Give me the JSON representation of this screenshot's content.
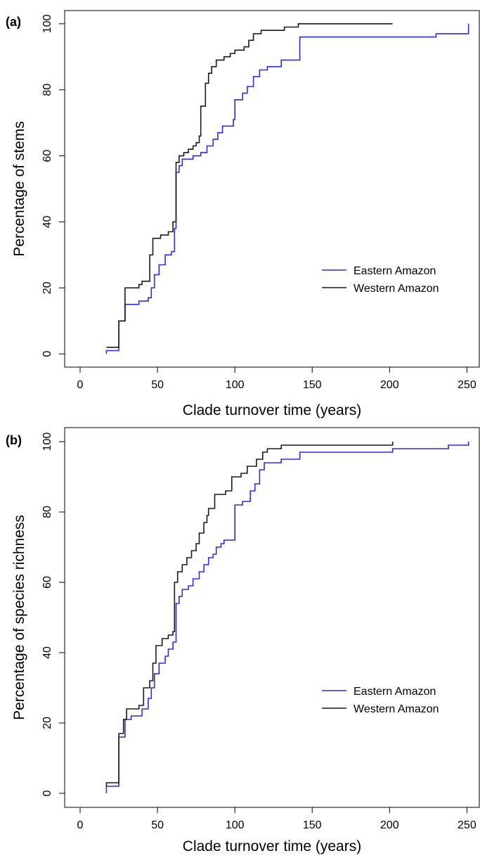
{
  "chart_data": [
    {
      "type": "line",
      "panel_label": "(a)",
      "xlabel": "Clade turnover time (years)",
      "ylabel": "Percentage of stems",
      "xlim": [
        -10,
        258
      ],
      "ylim": [
        -4,
        104
      ],
      "xticks": [
        0,
        50,
        100,
        150,
        200,
        250
      ],
      "yticks": [
        0,
        20,
        40,
        60,
        80,
        100
      ],
      "grid": false,
      "legend_position": "lower-right",
      "step": true,
      "series": [
        {
          "name": "Eastern Amazon",
          "color": "#2b2bf0",
          "points": [
            [
              17,
              0
            ],
            [
              17,
              1
            ],
            [
              25,
              1
            ],
            [
              25,
              10
            ],
            [
              29,
              10
            ],
            [
              29,
              15
            ],
            [
              38,
              15
            ],
            [
              38,
              16
            ],
            [
              44,
              16
            ],
            [
              44,
              17
            ],
            [
              46,
              17
            ],
            [
              46,
              20
            ],
            [
              48,
              20
            ],
            [
              48,
              24
            ],
            [
              51,
              24
            ],
            [
              51,
              27
            ],
            [
              55,
              27
            ],
            [
              55,
              30
            ],
            [
              59,
              30
            ],
            [
              59,
              31
            ],
            [
              61,
              31
            ],
            [
              61,
              38
            ],
            [
              62,
              38
            ],
            [
              62,
              55
            ],
            [
              64,
              55
            ],
            [
              64,
              57
            ],
            [
              66,
              57
            ],
            [
              66,
              59
            ],
            [
              73,
              59
            ],
            [
              73,
              60
            ],
            [
              78,
              60
            ],
            [
              78,
              61
            ],
            [
              82,
              61
            ],
            [
              82,
              63
            ],
            [
              86,
              63
            ],
            [
              86,
              65
            ],
            [
              89,
              65
            ],
            [
              89,
              67
            ],
            [
              92,
              67
            ],
            [
              92,
              69
            ],
            [
              99,
              69
            ],
            [
              99,
              71
            ],
            [
              100,
              71
            ],
            [
              100,
              77
            ],
            [
              105,
              77
            ],
            [
              105,
              79
            ],
            [
              108,
              79
            ],
            [
              108,
              81
            ],
            [
              112,
              81
            ],
            [
              112,
              84
            ],
            [
              116,
              84
            ],
            [
              116,
              86
            ],
            [
              121,
              86
            ],
            [
              121,
              87
            ],
            [
              130,
              87
            ],
            [
              130,
              89
            ],
            [
              142,
              89
            ],
            [
              142,
              96
            ],
            [
              230,
              96
            ],
            [
              230,
              97
            ],
            [
              251,
              97
            ],
            [
              251,
              100
            ]
          ]
        },
        {
          "name": "Western Amazon",
          "color": "#1a1a1a",
          "points": [
            [
              17,
              2
            ],
            [
              25,
              2
            ],
            [
              25,
              10
            ],
            [
              29,
              10
            ],
            [
              29,
              20
            ],
            [
              38,
              20
            ],
            [
              38,
              21
            ],
            [
              40,
              21
            ],
            [
              40,
              22
            ],
            [
              45,
              22
            ],
            [
              45,
              30
            ],
            [
              47,
              30
            ],
            [
              47,
              35
            ],
            [
              52,
              35
            ],
            [
              52,
              36
            ],
            [
              57,
              36
            ],
            [
              57,
              37
            ],
            [
              60,
              37
            ],
            [
              60,
              40
            ],
            [
              62,
              40
            ],
            [
              62,
              58
            ],
            [
              64,
              58
            ],
            [
              64,
              60
            ],
            [
              67,
              60
            ],
            [
              67,
              61
            ],
            [
              70,
              61
            ],
            [
              70,
              62
            ],
            [
              73,
              62
            ],
            [
              73,
              63
            ],
            [
              75,
              63
            ],
            [
              75,
              64
            ],
            [
              77,
              64
            ],
            [
              77,
              66
            ],
            [
              78,
              66
            ],
            [
              78,
              75
            ],
            [
              81,
              75
            ],
            [
              81,
              82
            ],
            [
              83,
              82
            ],
            [
              83,
              85
            ],
            [
              85,
              85
            ],
            [
              85,
              87
            ],
            [
              88,
              87
            ],
            [
              88,
              89
            ],
            [
              93,
              89
            ],
            [
              93,
              90
            ],
            [
              97,
              90
            ],
            [
              97,
              91
            ],
            [
              100,
              91
            ],
            [
              100,
              92
            ],
            [
              106,
              92
            ],
            [
              106,
              93
            ],
            [
              109,
              93
            ],
            [
              109,
              95
            ],
            [
              112,
              95
            ],
            [
              112,
              97
            ],
            [
              117,
              97
            ],
            [
              117,
              98
            ],
            [
              132,
              98
            ],
            [
              132,
              99
            ],
            [
              141,
              99
            ],
            [
              141,
              100
            ],
            [
              202,
              100
            ]
          ]
        }
      ]
    },
    {
      "type": "line",
      "panel_label": "(b)",
      "xlabel": "Clade turnover time (years)",
      "ylabel": "Percentage of species richness",
      "xlim": [
        -10,
        258
      ],
      "ylim": [
        -4,
        104
      ],
      "xticks": [
        0,
        50,
        100,
        150,
        200,
        250
      ],
      "yticks": [
        0,
        20,
        40,
        60,
        80,
        100
      ],
      "grid": false,
      "legend_position": "lower-right",
      "step": true,
      "series": [
        {
          "name": "Eastern Amazon",
          "color": "#2b2bf0",
          "points": [
            [
              17,
              0
            ],
            [
              17,
              2
            ],
            [
              25,
              2
            ],
            [
              25,
              16
            ],
            [
              29,
              16
            ],
            [
              29,
              21
            ],
            [
              33,
              21
            ],
            [
              33,
              22
            ],
            [
              40,
              22
            ],
            [
              40,
              24
            ],
            [
              44,
              24
            ],
            [
              44,
              27
            ],
            [
              46,
              27
            ],
            [
              46,
              30
            ],
            [
              48,
              30
            ],
            [
              48,
              34
            ],
            [
              51,
              34
            ],
            [
              51,
              37
            ],
            [
              55,
              37
            ],
            [
              55,
              39
            ],
            [
              57,
              39
            ],
            [
              57,
              41
            ],
            [
              60,
              41
            ],
            [
              60,
              43
            ],
            [
              62,
              43
            ],
            [
              62,
              54
            ],
            [
              64,
              54
            ],
            [
              64,
              56
            ],
            [
              66,
              56
            ],
            [
              66,
              58
            ],
            [
              70,
              58
            ],
            [
              70,
              59
            ],
            [
              73,
              59
            ],
            [
              73,
              61
            ],
            [
              77,
              61
            ],
            [
              77,
              63
            ],
            [
              80,
              63
            ],
            [
              80,
              65
            ],
            [
              83,
              65
            ],
            [
              83,
              67
            ],
            [
              86,
              67
            ],
            [
              86,
              68
            ],
            [
              88,
              68
            ],
            [
              88,
              70
            ],
            [
              91,
              70
            ],
            [
              91,
              71
            ],
            [
              93,
              71
            ],
            [
              93,
              72
            ],
            [
              100,
              72
            ],
            [
              100,
              82
            ],
            [
              105,
              82
            ],
            [
              105,
              83
            ],
            [
              110,
              83
            ],
            [
              110,
              86
            ],
            [
              113,
              86
            ],
            [
              113,
              88
            ],
            [
              116,
              88
            ],
            [
              116,
              92
            ],
            [
              119,
              92
            ],
            [
              119,
              94
            ],
            [
              130,
              94
            ],
            [
              130,
              95
            ],
            [
              142,
              95
            ],
            [
              142,
              97
            ],
            [
              202,
              97
            ],
            [
              202,
              98
            ],
            [
              238,
              98
            ],
            [
              238,
              99
            ],
            [
              251,
              99
            ],
            [
              251,
              100
            ]
          ]
        },
        {
          "name": "Western Amazon",
          "color": "#1a1a1a",
          "points": [
            [
              17,
              2
            ],
            [
              17,
              3
            ],
            [
              25,
              3
            ],
            [
              25,
              17
            ],
            [
              28,
              17
            ],
            [
              28,
              21
            ],
            [
              30,
              21
            ],
            [
              30,
              24
            ],
            [
              38,
              24
            ],
            [
              38,
              25
            ],
            [
              41,
              25
            ],
            [
              41,
              30
            ],
            [
              45,
              30
            ],
            [
              45,
              32
            ],
            [
              47,
              32
            ],
            [
              47,
              37
            ],
            [
              49,
              37
            ],
            [
              49,
              42
            ],
            [
              53,
              42
            ],
            [
              53,
              44
            ],
            [
              57,
              44
            ],
            [
              57,
              45
            ],
            [
              60,
              45
            ],
            [
              60,
              46
            ],
            [
              61,
              46
            ],
            [
              61,
              60
            ],
            [
              63,
              60
            ],
            [
              63,
              63
            ],
            [
              66,
              63
            ],
            [
              66,
              65
            ],
            [
              69,
              65
            ],
            [
              69,
              67
            ],
            [
              72,
              67
            ],
            [
              72,
              69
            ],
            [
              75,
              69
            ],
            [
              75,
              71
            ],
            [
              77,
              71
            ],
            [
              77,
              74
            ],
            [
              80,
              74
            ],
            [
              80,
              77
            ],
            [
              82,
              77
            ],
            [
              82,
              79
            ],
            [
              83,
              79
            ],
            [
              83,
              81
            ],
            [
              87,
              81
            ],
            [
              87,
              85
            ],
            [
              94,
              85
            ],
            [
              94,
              86
            ],
            [
              98,
              86
            ],
            [
              98,
              90
            ],
            [
              104,
              90
            ],
            [
              104,
              91
            ],
            [
              108,
              91
            ],
            [
              108,
              93
            ],
            [
              114,
              93
            ],
            [
              114,
              95
            ],
            [
              118,
              95
            ],
            [
              118,
              97
            ],
            [
              121,
              97
            ],
            [
              121,
              98
            ],
            [
              130,
              98
            ],
            [
              130,
              99
            ],
            [
              202,
              99
            ],
            [
              202,
              100
            ]
          ]
        }
      ]
    }
  ]
}
